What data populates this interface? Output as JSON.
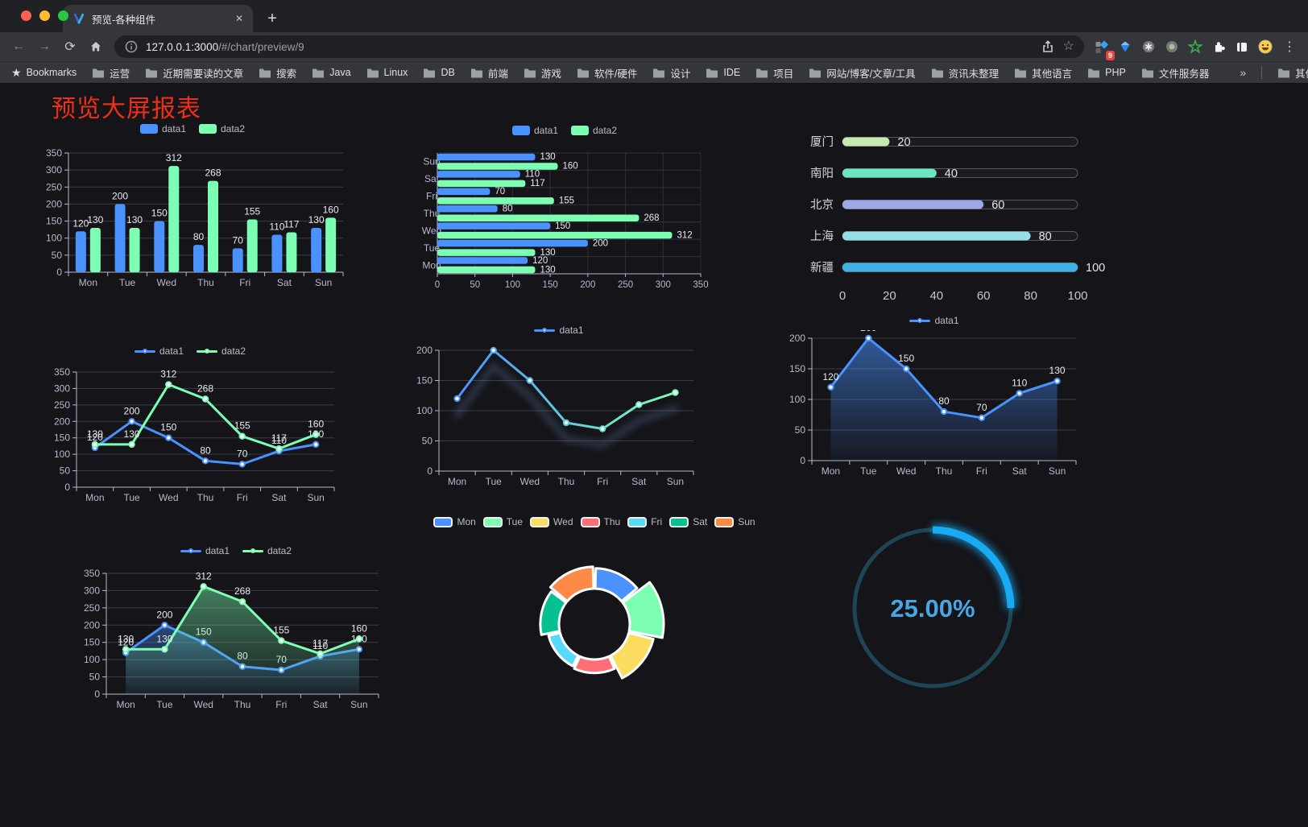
{
  "browser": {
    "tab_title": "预览-各种组件",
    "url_host": "127.0.0.1:3000",
    "url_path": "/#/chart/preview/9",
    "extension_badge": "9",
    "bookmarks_bar": {
      "bookmarks_label": "Bookmarks",
      "folders": [
        "运营",
        "近期需要读的文章",
        "搜索",
        "Java",
        "Linux",
        "DB",
        "前端",
        "游戏",
        "软件/硬件",
        "设计",
        "IDE",
        "项目",
        "网站/博客/文章/工具",
        "资讯未整理",
        "其他语言",
        "PHP",
        "文件服务器"
      ],
      "overflow_chevron": "»",
      "other_bookmarks_label": "其他书签"
    }
  },
  "page": {
    "title": "预览大屏报表",
    "title_color": "#ee2f18",
    "background": "#141419"
  },
  "colors": {
    "data1": "#4992ff",
    "data2": "#7cffb2",
    "axis_label": "#b9b8ce",
    "grid_line": "#3c3c49",
    "value_label": "#e9e9f0"
  },
  "chart_data": [
    {
      "type": "bar",
      "name": "grouped-bar-chart",
      "categories": [
        "Mon",
        "Tue",
        "Wed",
        "Thu",
        "Fri",
        "Sat",
        "Sun"
      ],
      "series": [
        {
          "name": "data1",
          "color": "#4992ff",
          "values": [
            120,
            200,
            150,
            80,
            70,
            110,
            130
          ]
        },
        {
          "name": "data2",
          "color": "#7cffb2",
          "values": [
            130,
            130,
            312,
            268,
            155,
            117,
            160
          ]
        }
      ],
      "ylim": [
        0,
        350
      ],
      "ystep": 50
    },
    {
      "type": "hbar",
      "name": "horizontal-bar-chart",
      "categories": [
        "Mon",
        "Tue",
        "Wed",
        "Thu",
        "Fri",
        "Sat",
        "Sun"
      ],
      "series": [
        {
          "name": "data1",
          "color": "#4992ff",
          "values": [
            120,
            200,
            150,
            80,
            70,
            110,
            130
          ]
        },
        {
          "name": "data2",
          "color": "#7cffb2",
          "values": [
            130,
            130,
            312,
            268,
            155,
            117,
            160
          ]
        }
      ],
      "xlim": [
        0,
        350
      ],
      "xstep": 50
    },
    {
      "type": "progress",
      "name": "progress-bar-chart",
      "rows": [
        {
          "label": "厦门",
          "value": 20,
          "color": "#c4ebad"
        },
        {
          "label": "南阳",
          "value": 40,
          "color": "#6be6c1"
        },
        {
          "label": "北京",
          "value": 60,
          "color": "#a0a7e6"
        },
        {
          "label": "上海",
          "value": 80,
          "color": "#96dee8"
        },
        {
          "label": "新疆",
          "value": 100,
          "color": "#3fb1e3"
        }
      ],
      "xlim": [
        0,
        100
      ],
      "xticks": [
        0,
        20,
        40,
        60,
        80,
        100
      ]
    },
    {
      "type": "line",
      "name": "two-series-line-chart",
      "categories": [
        "Mon",
        "Tue",
        "Wed",
        "Thu",
        "Fri",
        "Sat",
        "Sun"
      ],
      "series": [
        {
          "name": "data1",
          "color": "#4992ff",
          "values": [
            120,
            200,
            150,
            80,
            70,
            110,
            130
          ]
        },
        {
          "name": "data2",
          "color": "#7cffb2",
          "values": [
            130,
            130,
            312,
            268,
            155,
            117,
            160
          ]
        }
      ],
      "ylim": [
        0,
        350
      ],
      "ystep": 50,
      "show_labels": true
    },
    {
      "type": "line",
      "name": "gradient-line-chart",
      "categories": [
        "Mon",
        "Tue",
        "Wed",
        "Thu",
        "Fri",
        "Sat",
        "Sun"
      ],
      "series": [
        {
          "name": "data1",
          "gradient": [
            "#4992ff",
            "#7cffb2"
          ],
          "shadow": true,
          "values": [
            120,
            200,
            150,
            80,
            70,
            110,
            130
          ]
        }
      ],
      "ylim": [
        0,
        200
      ],
      "ystep": 50,
      "show_labels": false
    },
    {
      "type": "line",
      "name": "single-series-area-chart",
      "categories": [
        "Mon",
        "Tue",
        "Wed",
        "Thu",
        "Fri",
        "Sat",
        "Sun"
      ],
      "series": [
        {
          "name": "data1",
          "color": "#4992ff",
          "area": [
            "rgba(73,146,255,0.55)",
            "rgba(73,146,255,0.04)"
          ],
          "values": [
            120,
            200,
            150,
            80,
            70,
            110,
            130
          ]
        }
      ],
      "ylim": [
        0,
        200
      ],
      "ystep": 50,
      "show_labels": true
    },
    {
      "type": "line",
      "name": "two-series-area-chart",
      "categories": [
        "Mon",
        "Tue",
        "Wed",
        "Thu",
        "Fri",
        "Sat",
        "Sun"
      ],
      "series": [
        {
          "name": "data1",
          "color": "#4992ff",
          "area": [
            "rgba(73,146,255,0.40)",
            "rgba(73,146,255,0.04)"
          ],
          "values": [
            120,
            200,
            150,
            80,
            70,
            110,
            130
          ]
        },
        {
          "name": "data2",
          "color": "#7cffb2",
          "area": [
            "rgba(124,255,178,0.45)",
            "rgba(124,255,178,0.04)"
          ],
          "values": [
            130,
            130,
            312,
            268,
            155,
            117,
            160
          ]
        }
      ],
      "ylim": [
        0,
        350
      ],
      "ystep": 50,
      "show_labels": true
    },
    {
      "type": "pie",
      "name": "rose-pie-chart",
      "items": [
        {
          "name": "Mon",
          "value": 120,
          "color": "#4992ff"
        },
        {
          "name": "Tue",
          "value": 200,
          "color": "#7cffb2"
        },
        {
          "name": "Wed",
          "value": 150,
          "color": "#fddd60"
        },
        {
          "name": "Thu",
          "value": 80,
          "color": "#ff6e76"
        },
        {
          "name": "Fri",
          "value": 70,
          "color": "#58d9f9"
        },
        {
          "name": "Sat",
          "value": 110,
          "color": "#05c091"
        },
        {
          "name": "Sun",
          "value": 130,
          "color": "#ff8a45"
        }
      ]
    },
    {
      "type": "gauge",
      "name": "gauge-chart",
      "label": "25.00%",
      "percent": 25,
      "color": "#18aaf2",
      "track_color": "#1e4554",
      "text_color": "#4aa6e2"
    }
  ]
}
